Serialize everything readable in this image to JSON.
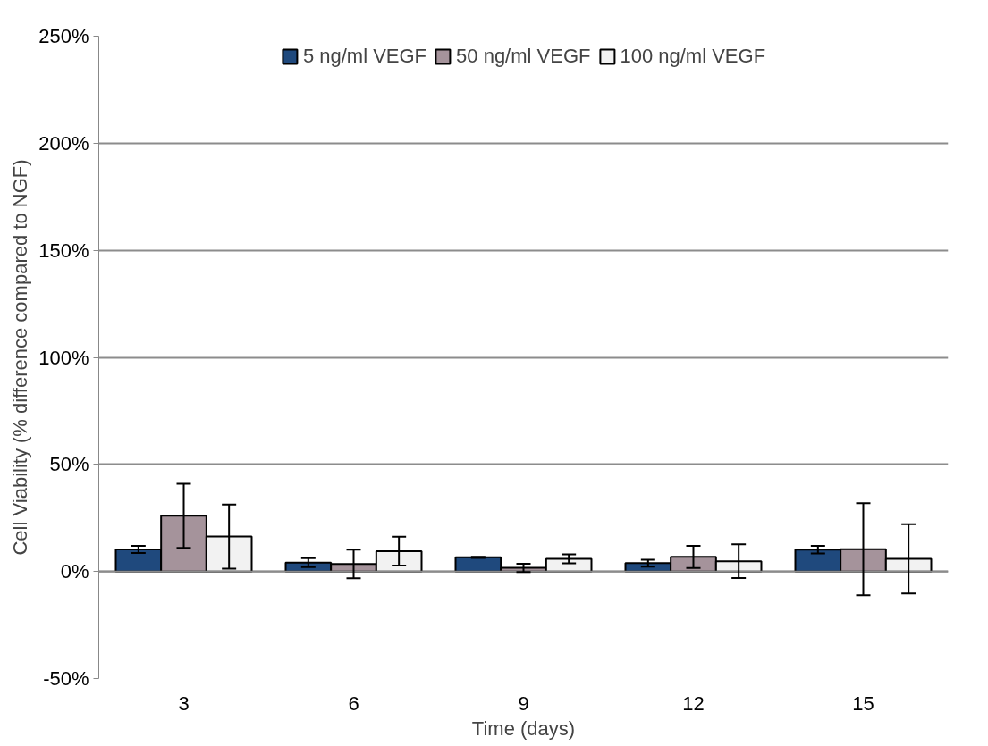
{
  "chart_data": {
    "type": "bar",
    "xlabel": "Time (days)",
    "ylabel": "Cell Viability (% difference compared to NGF)",
    "categories": [
      "3",
      "6",
      "9",
      "12",
      "15"
    ],
    "series": [
      {
        "name": "5 ng/ml VEGF",
        "color": "#1f497d",
        "values": [
          10.3,
          4.1,
          6.6,
          3.9,
          10.2
        ],
        "errors": [
          1.7,
          2.1,
          0.3,
          1.6,
          1.8
        ]
      },
      {
        "name": "50 ng/ml VEGF",
        "color": "#a5939b",
        "values": [
          26,
          3.5,
          1.7,
          6.8,
          10.4
        ],
        "errors": [
          15,
          6.7,
          1.9,
          5.2,
          21.5
        ]
      },
      {
        "name": "100 ng/ml VEGF",
        "color": "#f2f2f2",
        "values": [
          16.3,
          9.5,
          5.9,
          4.8,
          5.9
        ],
        "errors": [
          15,
          6.7,
          2.1,
          7.9,
          16.2
        ]
      }
    ],
    "ylim": [
      -50,
      250
    ],
    "yticks": [
      {
        "value": -50,
        "label": "-50%"
      },
      {
        "value": 0,
        "label": "0%"
      },
      {
        "value": 50,
        "label": "50%"
      },
      {
        "value": 100,
        "label": "100%"
      },
      {
        "value": 150,
        "label": "150%"
      },
      {
        "value": 200,
        "label": "200%"
      },
      {
        "value": 250,
        "label": "250%"
      }
    ],
    "grid": "y",
    "legend": "top"
  }
}
